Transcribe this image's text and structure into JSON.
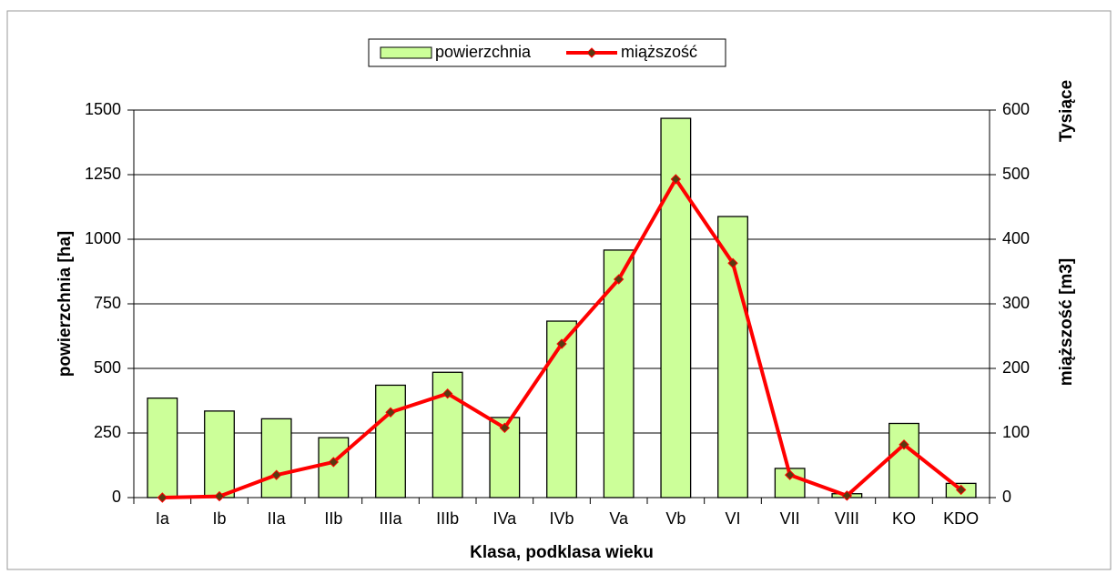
{
  "chart_data": {
    "type": "bar",
    "x_label": "Klasa, podklasa wieku",
    "y_label": "powierzchnia [ha]",
    "y2_label": "miąższość  [m3]",
    "y2_display_unit": "Tysiące",
    "categories": [
      "Ia",
      "Ib",
      "IIa",
      "IIb",
      "IIIa",
      "IIIb",
      "IVa",
      "IVb",
      "Va",
      "Vb",
      "VI",
      "VII",
      "VIII",
      "KO",
      "KDO"
    ],
    "series": [
      {
        "name": "powierzchnia",
        "type": "bar",
        "color": "#ccff99",
        "values": [
          385,
          335,
          305,
          232,
          435,
          485,
          310,
          683,
          958,
          1468,
          1088,
          113,
          15,
          287,
          55
        ]
      },
      {
        "name": "miąższość",
        "type": "line",
        "axis": "y2",
        "color": "#ff0000",
        "marker_color": "#5a3a10",
        "values": [
          0,
          2,
          35,
          55,
          132,
          161,
          108,
          238,
          338,
          493,
          363,
          35,
          3,
          82,
          12
        ]
      }
    ],
    "ylim": [
      0,
      1500
    ],
    "yticks": [
      0,
      250,
      500,
      750,
      1000,
      1250,
      1500
    ],
    "y2lim": [
      0,
      600
    ],
    "y2ticks": [
      0,
      100,
      200,
      300,
      400,
      500,
      600
    ],
    "grid": true,
    "legend": "top"
  }
}
